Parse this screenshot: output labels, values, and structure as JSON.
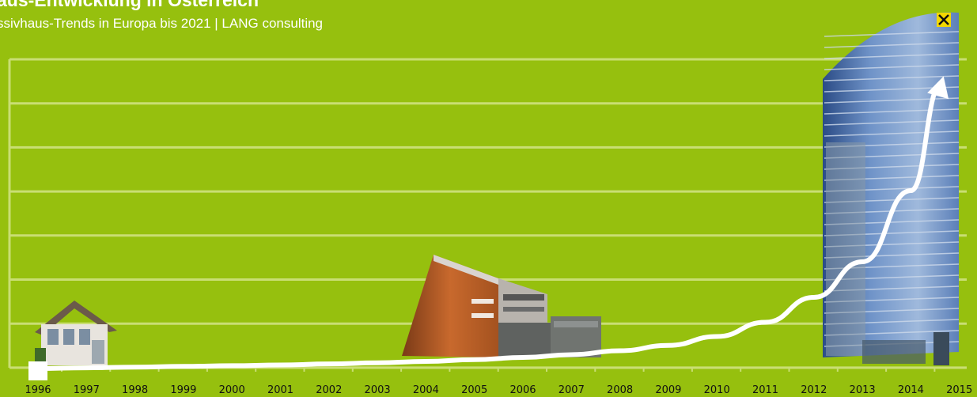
{
  "header": {
    "title": "aus-Entwicklung in Österreich",
    "subtitle": "ssivhaus-Trends in Europa bis 2021 | LANG consulting"
  },
  "colors": {
    "background": "#96c00e",
    "grid": "#c9de74",
    "arrow": "#ffffff"
  },
  "icons": {
    "logo": "raiffeisen-giebelkreuz-icon"
  },
  "chart_data": {
    "type": "line",
    "title": "",
    "xlabel": "",
    "ylabel": "",
    "categories": [
      "1996",
      "1997",
      "1998",
      "1999",
      "2000",
      "2001",
      "2002",
      "2003",
      "2004",
      "2005",
      "2006",
      "2007",
      "2008",
      "2009",
      "2010",
      "2011",
      "2012",
      "2013",
      "2014",
      "2015"
    ],
    "x": [
      1996,
      1997,
      1998,
      1999,
      2000,
      2001,
      2002,
      2003,
      2004,
      2005,
      2006,
      2007,
      2008,
      2009,
      2010,
      2011,
      2012,
      2013,
      2014,
      2015
    ],
    "series": [
      {
        "values": [
          0,
          0.2,
          0.4,
          0.6,
          0.8,
          1.0,
          1.3,
          1.6,
          2.0,
          2.5,
          3.1,
          3.9,
          5.0,
          6.5,
          9.0,
          13.0,
          20.0,
          30.0,
          50.0,
          80.0
        ]
      }
    ],
    "ylim": [
      0,
      80
    ],
    "grid": true,
    "legend": "none",
    "annotations": [
      "building photo near 1996",
      "building photo near 2004-2007",
      "high-rise photo near 2013-2015"
    ]
  }
}
